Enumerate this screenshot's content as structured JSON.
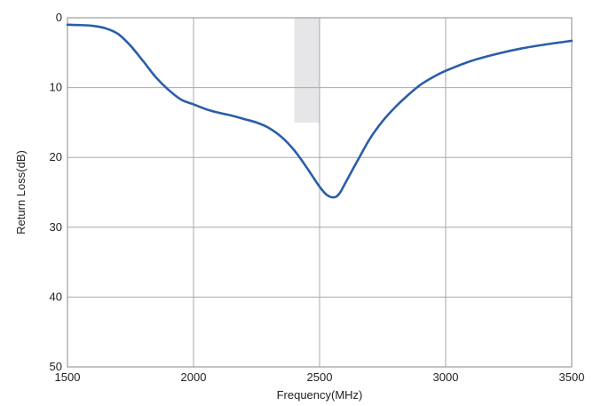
{
  "chart_data": {
    "type": "line",
    "xlabel": "Frequency(MHz)",
    "ylabel": "Return Loss(dB)",
    "xlim": [
      1500,
      3500
    ],
    "ylim": [
      0,
      50
    ],
    "y_axis_inverted": true,
    "grid": true,
    "x_ticks": [
      1500,
      2000,
      2500,
      3000,
      3500
    ],
    "y_ticks": [
      0,
      10,
      20,
      30,
      40,
      50
    ],
    "shaded_band": {
      "x": [
        2400,
        2500
      ],
      "y": [
        0,
        15
      ],
      "color": "#e6e6e8"
    },
    "series": [
      {
        "color": "#2a5ea8",
        "x": [
          1500,
          1550,
          1600,
          1650,
          1700,
          1750,
          1800,
          1850,
          1900,
          1950,
          2000,
          2050,
          2100,
          2150,
          2200,
          2250,
          2300,
          2350,
          2400,
          2450,
          2500,
          2530,
          2560,
          2580,
          2600,
          2650,
          2700,
          2750,
          2800,
          2850,
          2900,
          2950,
          3000,
          3100,
          3200,
          3300,
          3400,
          3500
        ],
        "y": [
          1.0,
          1.05,
          1.15,
          1.5,
          2.3,
          4.0,
          6.2,
          8.5,
          10.3,
          11.7,
          12.4,
          13.1,
          13.6,
          14.0,
          14.5,
          15.0,
          15.8,
          17.1,
          19.0,
          21.5,
          24.2,
          25.4,
          25.7,
          25.1,
          23.8,
          20.5,
          17.3,
          14.8,
          12.8,
          11.1,
          9.6,
          8.5,
          7.6,
          6.2,
          5.2,
          4.4,
          3.8,
          3.3
        ]
      }
    ]
  }
}
